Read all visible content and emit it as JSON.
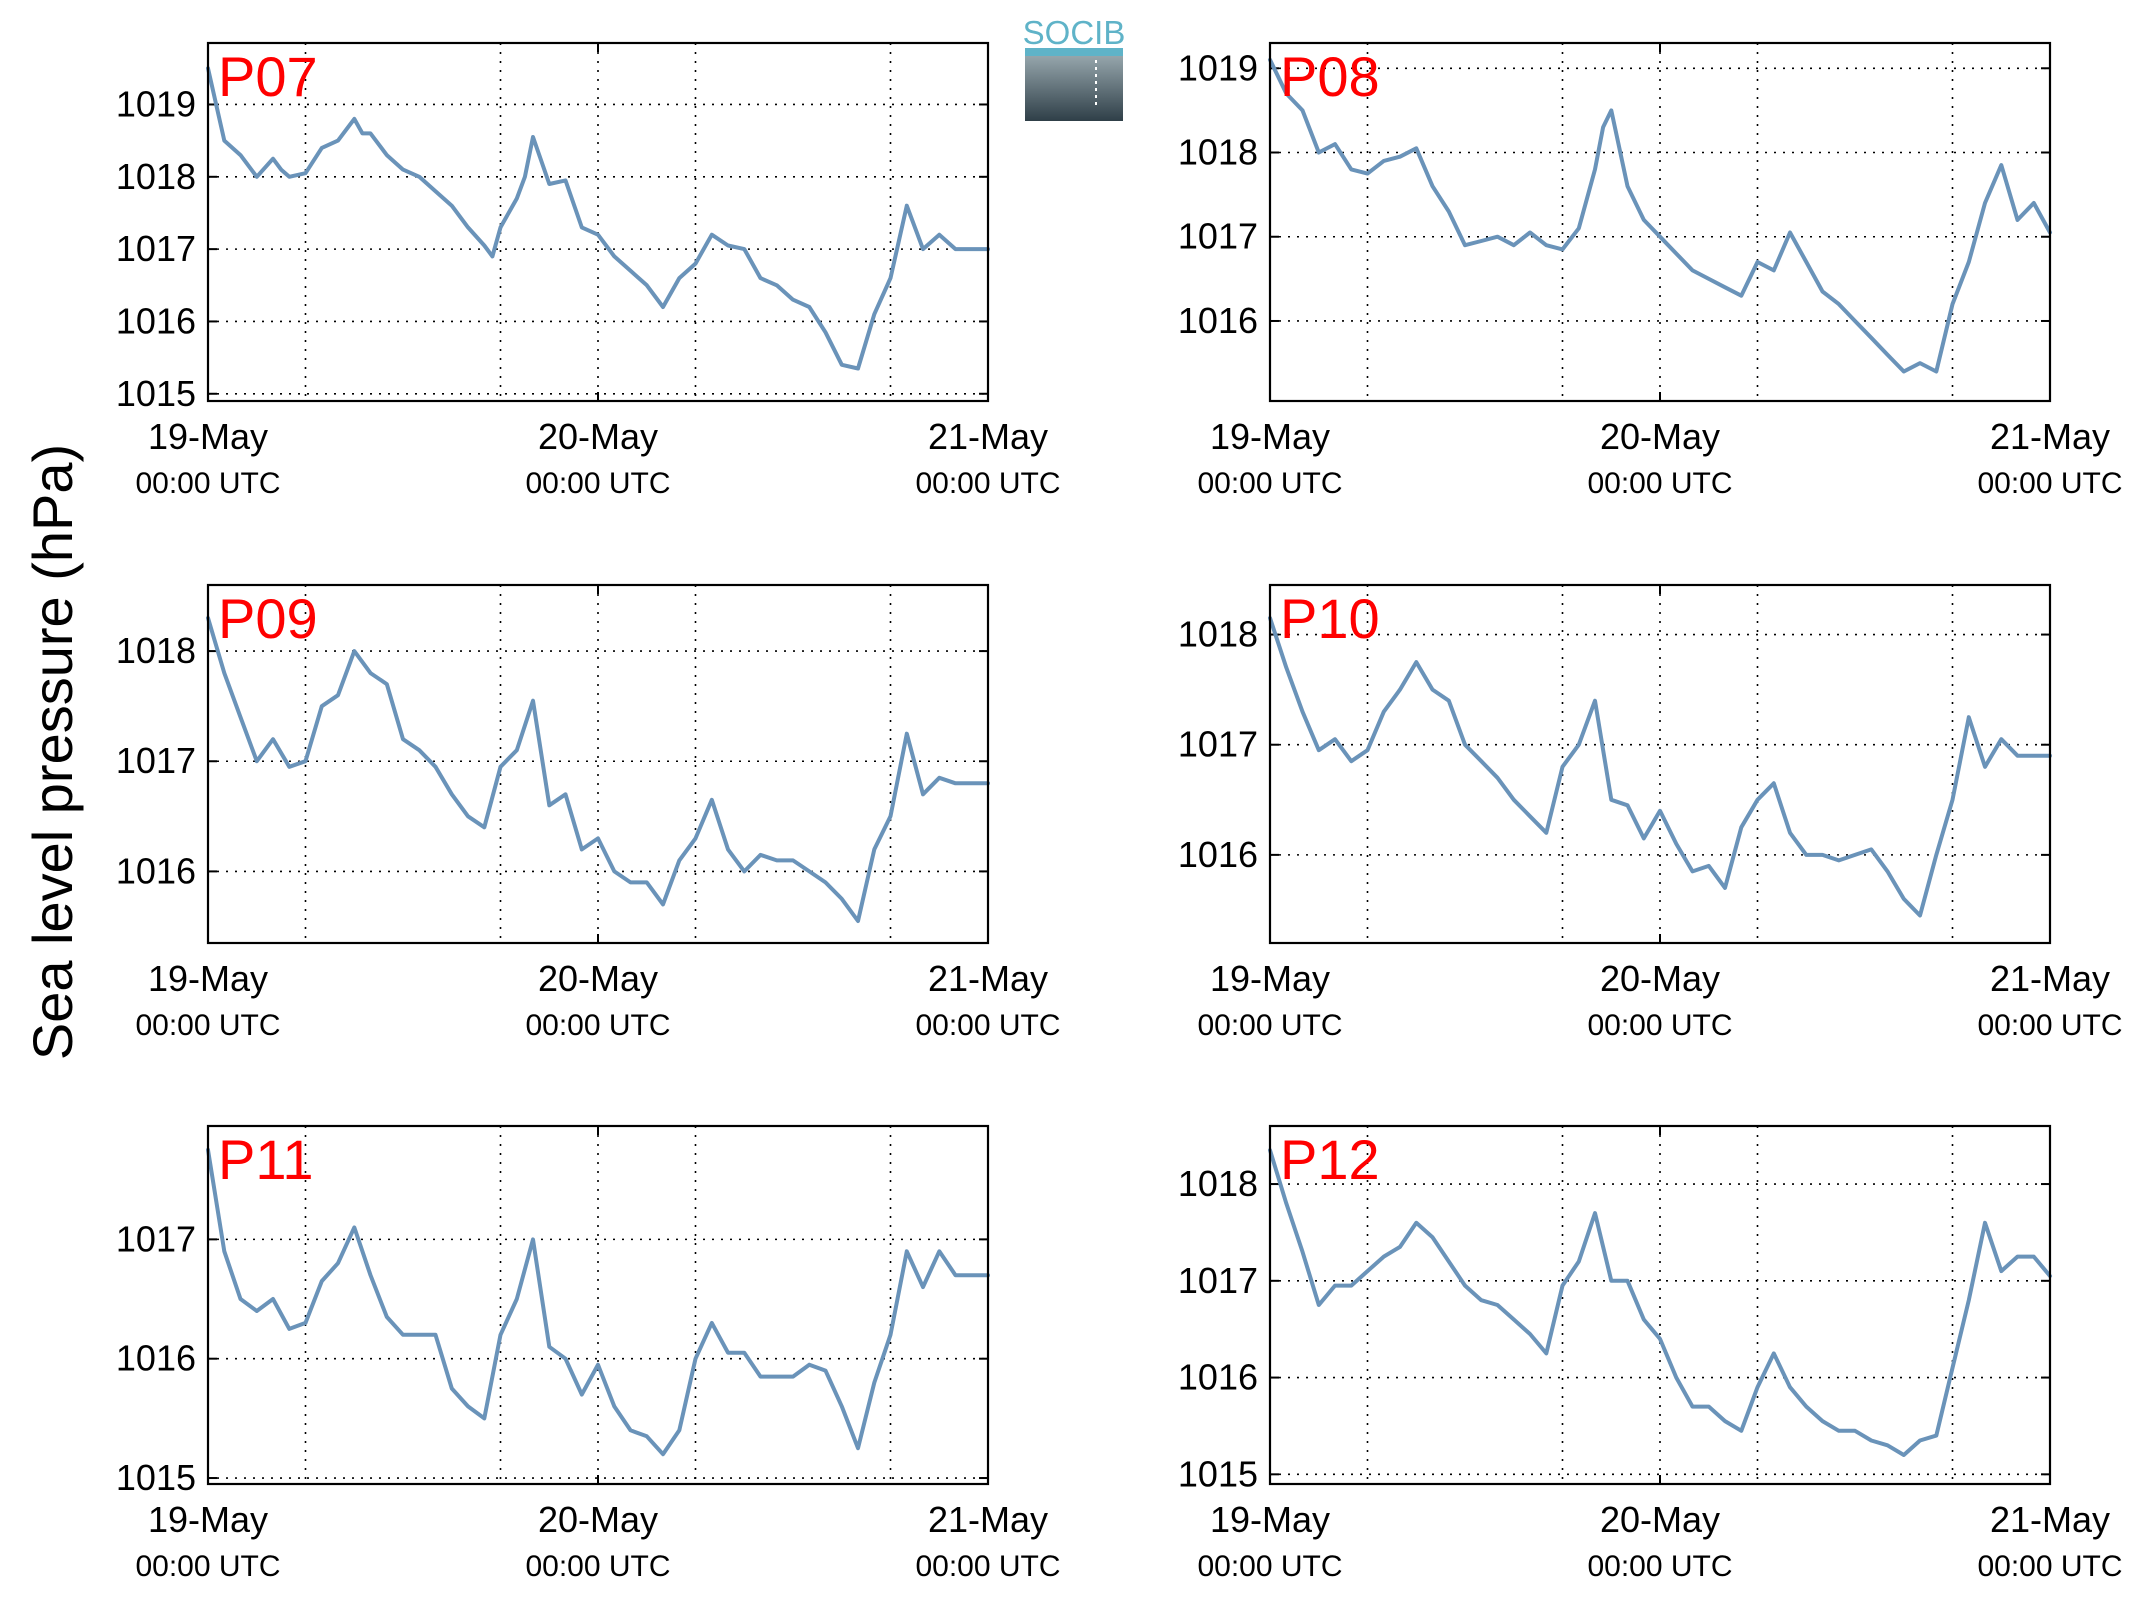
{
  "figure": {
    "ylabel": "Sea level pressure (hPa)",
    "logo_text": "SOCIB",
    "line_color": "#6a93b9",
    "label_color": "#ff0000",
    "x_ticks": [
      {
        "t": 0,
        "date": "19-May",
        "time": "00:00 UTC"
      },
      {
        "t": 24,
        "date": "20-May",
        "time": "00:00 UTC"
      },
      {
        "t": 48,
        "date": "21-May",
        "time": "00:00 UTC"
      }
    ],
    "x_grid_hours": [
      6,
      18,
      30,
      42
    ]
  },
  "chart_data": [
    {
      "type": "line",
      "title": "P07",
      "xlim": [
        0,
        48
      ],
      "ylim": [
        1014.9,
        1019.85
      ],
      "yticks": [
        1015,
        1016,
        1017,
        1018,
        1019
      ],
      "series": [
        {
          "x": [
            0,
            1,
            2,
            3,
            4,
            4.5,
            5,
            6,
            7,
            8,
            9,
            9.5,
            10,
            11,
            12,
            13,
            14,
            15,
            16,
            17,
            17.5,
            18,
            19,
            19.5,
            20,
            21,
            22,
            23,
            24,
            25,
            26,
            27,
            28,
            29,
            30,
            31,
            32,
            33,
            34,
            35,
            36,
            37,
            38,
            39,
            40,
            41,
            42,
            43,
            44,
            45,
            46,
            47,
            48
          ],
          "y": [
            1019.5,
            1018.5,
            1018.3,
            1018,
            1018.25,
            1018.1,
            1018,
            1018.05,
            1018.4,
            1018.5,
            1018.8,
            1018.6,
            1018.6,
            1018.3,
            1018.1,
            1018,
            1017.8,
            1017.6,
            1017.3,
            1017.05,
            1016.9,
            1017.3,
            1017.7,
            1018,
            1018.55,
            1017.9,
            1017.95,
            1017.3,
            1017.2,
            1016.9,
            1016.7,
            1016.5,
            1016.2,
            1016.6,
            1016.8,
            1017.2,
            1017.05,
            1017.0,
            1016.6,
            1016.5,
            1016.3,
            1016.2,
            1015.85,
            1015.4,
            1015.35,
            1016.1,
            1016.6,
            1017.6,
            1017.0,
            1017.2,
            1017.0,
            1017.0,
            1017.0
          ]
        }
      ]
    },
    {
      "type": "line",
      "title": "P08",
      "xlim": [
        0,
        48
      ],
      "ylim": [
        1015.05,
        1019.3
      ],
      "yticks": [
        1016,
        1017,
        1018,
        1019
      ],
      "series": [
        {
          "x": [
            0,
            1,
            2,
            3,
            4,
            5,
            6,
            7,
            8,
            9,
            10,
            11,
            12,
            13,
            14,
            15,
            16,
            17,
            18,
            19,
            20,
            20.5,
            21,
            22,
            23,
            24,
            25,
            26,
            27,
            28,
            29,
            30,
            31,
            32,
            33,
            34,
            35,
            36,
            37,
            38,
            39,
            40,
            41,
            42,
            43,
            44,
            45,
            46,
            47,
            48
          ],
          "y": [
            1019.1,
            1018.7,
            1018.5,
            1018.0,
            1018.1,
            1017.8,
            1017.75,
            1017.9,
            1017.95,
            1018.05,
            1017.6,
            1017.3,
            1016.9,
            1016.95,
            1017.0,
            1016.9,
            1017.05,
            1016.9,
            1016.85,
            1017.1,
            1017.8,
            1018.3,
            1018.5,
            1017.6,
            1017.2,
            1017.0,
            1016.8,
            1016.6,
            1016.5,
            1016.4,
            1016.3,
            1016.7,
            1016.6,
            1017.05,
            1016.7,
            1016.35,
            1016.2,
            1016.0,
            1015.8,
            1015.6,
            1015.4,
            1015.5,
            1015.4,
            1016.2,
            1016.7,
            1017.4,
            1017.85,
            1017.2,
            1017.4,
            1017.05
          ]
        }
      ]
    },
    {
      "type": "line",
      "title": "P09",
      "xlim": [
        0,
        48
      ],
      "ylim": [
        1015.35,
        1018.6
      ],
      "yticks": [
        1016,
        1017,
        1018
      ],
      "series": [
        {
          "x": [
            0,
            1,
            2,
            3,
            4,
            5,
            6,
            7,
            8,
            9,
            10,
            11,
            12,
            13,
            14,
            15,
            16,
            17,
            18,
            19,
            20,
            21,
            22,
            23,
            24,
            25,
            26,
            27,
            28,
            29,
            30,
            31,
            32,
            33,
            34,
            35,
            36,
            37,
            38,
            39,
            40,
            41,
            42,
            43,
            44,
            45,
            46,
            47,
            48
          ],
          "y": [
            1018.3,
            1017.8,
            1017.4,
            1017.0,
            1017.2,
            1016.95,
            1017.0,
            1017.5,
            1017.6,
            1018.0,
            1017.8,
            1017.7,
            1017.2,
            1017.1,
            1016.95,
            1016.7,
            1016.5,
            1016.4,
            1016.95,
            1017.1,
            1017.55,
            1016.6,
            1016.7,
            1016.2,
            1016.3,
            1016.0,
            1015.9,
            1015.9,
            1015.7,
            1016.1,
            1016.3,
            1016.65,
            1016.2,
            1016.0,
            1016.15,
            1016.1,
            1016.1,
            1016.0,
            1015.9,
            1015.75,
            1015.55,
            1016.2,
            1016.5,
            1017.25,
            1016.7,
            1016.85,
            1016.8,
            1016.8,
            1016.8
          ]
        }
      ]
    },
    {
      "type": "line",
      "title": "P10",
      "xlim": [
        0,
        48
      ],
      "ylim": [
        1015.2,
        1018.45
      ],
      "yticks": [
        1016,
        1017,
        1018
      ],
      "series": [
        {
          "x": [
            0,
            1,
            2,
            3,
            4,
            5,
            6,
            7,
            8,
            9,
            10,
            11,
            12,
            13,
            14,
            15,
            16,
            17,
            18,
            19,
            20,
            21,
            22,
            23,
            24,
            25,
            26,
            27,
            28,
            29,
            30,
            31,
            32,
            33,
            34,
            35,
            36,
            37,
            38,
            39,
            40,
            41,
            42,
            43,
            44,
            45,
            46,
            47,
            48
          ],
          "y": [
            1018.15,
            1017.7,
            1017.3,
            1016.95,
            1017.05,
            1016.85,
            1016.95,
            1017.3,
            1017.5,
            1017.75,
            1017.5,
            1017.4,
            1017.0,
            1016.85,
            1016.7,
            1016.5,
            1016.35,
            1016.2,
            1016.8,
            1017.0,
            1017.4,
            1016.5,
            1016.45,
            1016.15,
            1016.4,
            1016.1,
            1015.85,
            1015.9,
            1015.7,
            1016.25,
            1016.5,
            1016.65,
            1016.2,
            1016.0,
            1016.0,
            1015.95,
            1016.0,
            1016.05,
            1015.85,
            1015.6,
            1015.45,
            1016.0,
            1016.5,
            1017.25,
            1016.8,
            1017.05,
            1016.9,
            1016.9,
            1016.9
          ]
        }
      ]
    },
    {
      "type": "line",
      "title": "P11",
      "xlim": [
        0,
        48
      ],
      "ylim": [
        1014.95,
        1017.95
      ],
      "yticks": [
        1015,
        1016,
        1017
      ],
      "series": [
        {
          "x": [
            0,
            1,
            2,
            3,
            4,
            5,
            6,
            7,
            8,
            9,
            10,
            11,
            12,
            13,
            14,
            15,
            16,
            17,
            18,
            19,
            20,
            21,
            22,
            23,
            24,
            25,
            26,
            27,
            28,
            29,
            30,
            31,
            32,
            33,
            34,
            35,
            36,
            37,
            38,
            39,
            40,
            41,
            42,
            43,
            44,
            45,
            46,
            47,
            48
          ],
          "y": [
            1017.75,
            1016.9,
            1016.5,
            1016.4,
            1016.5,
            1016.25,
            1016.3,
            1016.65,
            1016.8,
            1017.1,
            1016.7,
            1016.35,
            1016.2,
            1016.2,
            1016.2,
            1015.75,
            1015.6,
            1015.5,
            1016.2,
            1016.5,
            1017.0,
            1016.1,
            1016.0,
            1015.7,
            1015.95,
            1015.6,
            1015.4,
            1015.35,
            1015.2,
            1015.4,
            1016.0,
            1016.3,
            1016.05,
            1016.05,
            1015.85,
            1015.85,
            1015.85,
            1015.95,
            1015.9,
            1015.6,
            1015.25,
            1015.8,
            1016.2,
            1016.9,
            1016.6,
            1016.9,
            1016.7,
            1016.7,
            1016.7
          ]
        }
      ]
    },
    {
      "type": "line",
      "title": "P12",
      "xlim": [
        0,
        48
      ],
      "ylim": [
        1014.9,
        1018.6
      ],
      "yticks": [
        1015,
        1016,
        1017,
        1018
      ],
      "series": [
        {
          "x": [
            0,
            1,
            2,
            3,
            4,
            5,
            6,
            7,
            8,
            9,
            10,
            11,
            12,
            13,
            14,
            15,
            16,
            17,
            18,
            19,
            20,
            21,
            22,
            23,
            24,
            25,
            26,
            27,
            28,
            29,
            30,
            31,
            32,
            33,
            34,
            35,
            36,
            37,
            38,
            39,
            40,
            41,
            42,
            43,
            44,
            45,
            46,
            47,
            48
          ],
          "y": [
            1018.35,
            1017.8,
            1017.3,
            1016.75,
            1016.95,
            1016.95,
            1017.1,
            1017.25,
            1017.35,
            1017.6,
            1017.45,
            1017.2,
            1016.95,
            1016.8,
            1016.75,
            1016.6,
            1016.45,
            1016.25,
            1016.95,
            1017.2,
            1017.7,
            1017.0,
            1017.0,
            1016.6,
            1016.4,
            1016.0,
            1015.7,
            1015.7,
            1015.55,
            1015.45,
            1015.9,
            1016.25,
            1015.9,
            1015.7,
            1015.55,
            1015.45,
            1015.45,
            1015.35,
            1015.3,
            1015.2,
            1015.35,
            1015.4,
            1016.1,
            1016.8,
            1017.6,
            1017.1,
            1017.25,
            1017.25,
            1017.05
          ]
        }
      ]
    }
  ]
}
